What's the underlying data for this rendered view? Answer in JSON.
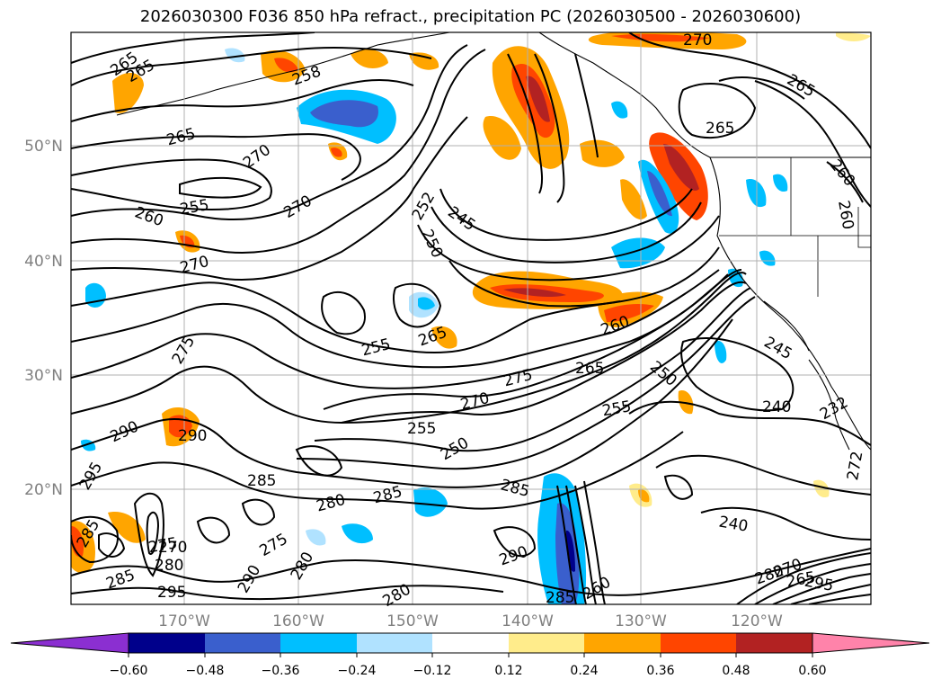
{
  "title": "2026030300 F036 850 hPa refract., precipitation PC (2026030500 - 2026030600)",
  "lat_labels": [
    "50°N",
    "40°N",
    "30°N",
    "20°N"
  ],
  "lon_labels": [
    "170°W",
    "160°W",
    "150°W",
    "140°W",
    "130°W",
    "120°W"
  ],
  "colorbar": {
    "ticks": [
      "−0.60",
      "−0.48",
      "−0.36",
      "−0.24",
      "−0.12",
      "0.12",
      "0.24",
      "0.36",
      "0.48",
      "0.60"
    ],
    "colors": [
      "#8b2fd1",
      "#00008b",
      "#3a5fcd",
      "#00bfff",
      "#b0e2ff",
      "#ffffff",
      "#ffec8b",
      "#ffa500",
      "#ff4500",
      "#b22222",
      "#ff83aa"
    ]
  },
  "contour_labels": [
    "265",
    "265",
    "258",
    "270",
    "265",
    "270",
    "265",
    "255",
    "260",
    "270",
    "270",
    "252",
    "245",
    "250",
    "265",
    "260",
    "275",
    "255",
    "265",
    "275",
    "260",
    "270",
    "265",
    "250",
    "255",
    "240",
    "245",
    "232",
    "255",
    "250",
    "290",
    "290",
    "295",
    "285",
    "280",
    "285",
    "285",
    "280",
    "290",
    "275",
    "280",
    "270",
    "285",
    "295",
    "290",
    "260",
    "285",
    "280",
    "240",
    "285",
    "280",
    "295",
    "260",
    "270",
    "265",
    "275",
    "272"
  ]
}
